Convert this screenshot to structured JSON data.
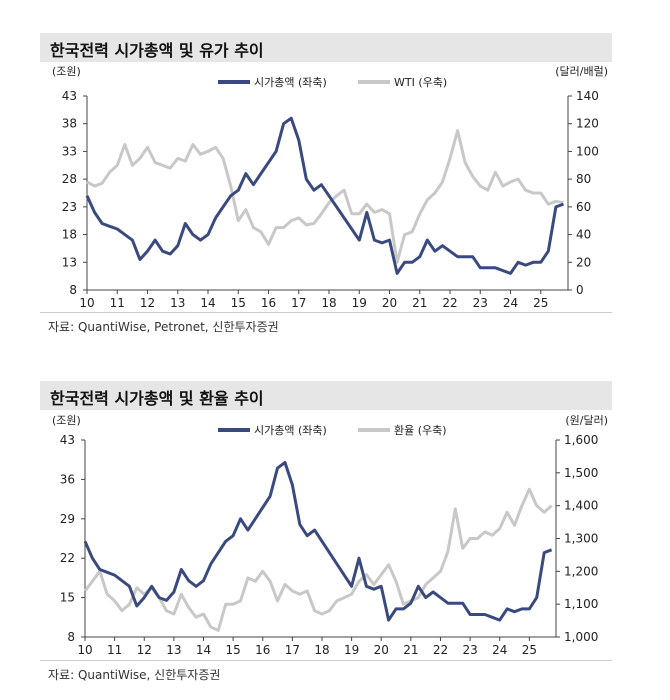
{
  "chart_data": [
    {
      "type": "line",
      "title": "한국전력 시가총액 및 유가 추이",
      "y_unit_left": "(조원)",
      "y_unit_right": "(달러/배럴)",
      "xlim": [
        2010,
        2025.9
      ],
      "x_ticks": [
        "10",
        "11",
        "12",
        "13",
        "14",
        "15",
        "16",
        "17",
        "18",
        "19",
        "20",
        "21",
        "22",
        "23",
        "24",
        "25"
      ],
      "ylim_left": [
        8,
        43
      ],
      "yticks_left": [
        8,
        13,
        18,
        23,
        28,
        33,
        38,
        43
      ],
      "ylim_right": [
        0,
        140
      ],
      "yticks_right": [
        0,
        20,
        40,
        60,
        80,
        100,
        120,
        140
      ],
      "legend": "top",
      "series": [
        {
          "name": "시가총액 (좌축)",
          "axis": "left",
          "color": "#3a4a7e",
          "x_start": 2010,
          "x_step": 0.25,
          "values": [
            25,
            22,
            20,
            19.5,
            19,
            18,
            17,
            13.5,
            15,
            17,
            15,
            14.5,
            16,
            20,
            18,
            17,
            18,
            21,
            23,
            25,
            26,
            29,
            27,
            29,
            31,
            33,
            38,
            39,
            35,
            28,
            26,
            27,
            25,
            23,
            21,
            19,
            17,
            22,
            17,
            16.5,
            17,
            11,
            13,
            13,
            14,
            17,
            15,
            16,
            15,
            14,
            14,
            14,
            12,
            12,
            12,
            11.5,
            11,
            13,
            12.5,
            13,
            13,
            15,
            23,
            23.5
          ]
        },
        {
          "name": "WTI (우축)",
          "axis": "right",
          "color": "#c8c8c8",
          "x_start": 2010,
          "x_step": 0.25,
          "values": [
            78,
            75,
            77,
            85,
            90,
            105,
            90,
            95,
            103,
            92,
            90,
            88,
            95,
            93,
            105,
            98,
            100,
            103,
            95,
            75,
            50,
            58,
            45,
            42,
            33,
            45,
            45,
            50,
            52,
            47,
            48,
            55,
            63,
            68,
            72,
            55,
            55,
            62,
            56,
            58,
            55,
            20,
            40,
            42,
            55,
            65,
            70,
            78,
            95,
            115,
            92,
            82,
            75,
            72,
            85,
            75,
            78,
            80,
            72,
            70,
            70,
            62,
            64,
            63
          ]
        }
      ],
      "source": "자료: QuantiWise, Petronet, 신한투자증권"
    },
    {
      "type": "line",
      "title": "한국전력 시가총액 및 환율 추이",
      "y_unit_left": "(조원)",
      "y_unit_right": "(원/달러)",
      "xlim": [
        2010,
        2025.9
      ],
      "x_ticks": [
        "10",
        "11",
        "12",
        "13",
        "14",
        "15",
        "16",
        "17",
        "18",
        "19",
        "20",
        "21",
        "22",
        "23",
        "24",
        "25"
      ],
      "ylim_left": [
        8,
        43
      ],
      "yticks_left": [
        8,
        15,
        22,
        29,
        36,
        43
      ],
      "ylim_right": [
        1000,
        1600
      ],
      "yticks_right": [
        "1,000",
        "1,100",
        "1,200",
        "1,300",
        "1,400",
        "1,500",
        "1,600"
      ],
      "legend": "top",
      "series": [
        {
          "name": "시가총액 (좌축)",
          "axis": "left",
          "color": "#3a4a7e",
          "x_start": 2010,
          "x_step": 0.25,
          "values": [
            25,
            22,
            20,
            19.5,
            19,
            18,
            17,
            13.5,
            15,
            17,
            15,
            14.5,
            16,
            20,
            18,
            17,
            18,
            21,
            23,
            25,
            26,
            29,
            27,
            29,
            31,
            33,
            38,
            39,
            35,
            28,
            26,
            27,
            25,
            23,
            21,
            19,
            17,
            22,
            17,
            16.5,
            17,
            11,
            13,
            13,
            14,
            17,
            15,
            16,
            15,
            14,
            14,
            14,
            12,
            12,
            12,
            11.5,
            11,
            13,
            12.5,
            13,
            13,
            15,
            23,
            23.5
          ]
        },
        {
          "name": "환율 (우축)",
          "axis": "right",
          "color": "#c8c8c8",
          "x_start": 2010,
          "x_step": 0.25,
          "values": [
            1140,
            1170,
            1200,
            1130,
            1110,
            1080,
            1100,
            1150,
            1130,
            1150,
            1120,
            1080,
            1070,
            1130,
            1090,
            1060,
            1070,
            1030,
            1020,
            1100,
            1100,
            1110,
            1180,
            1170,
            1200,
            1170,
            1110,
            1160,
            1140,
            1130,
            1140,
            1080,
            1070,
            1080,
            1110,
            1120,
            1130,
            1170,
            1190,
            1160,
            1190,
            1220,
            1170,
            1100,
            1110,
            1120,
            1160,
            1180,
            1200,
            1260,
            1390,
            1270,
            1300,
            1300,
            1320,
            1310,
            1330,
            1380,
            1340,
            1400,
            1450,
            1400,
            1380,
            1400
          ]
        }
      ],
      "source": "자료: QuantiWise, 신한투자증권"
    }
  ]
}
